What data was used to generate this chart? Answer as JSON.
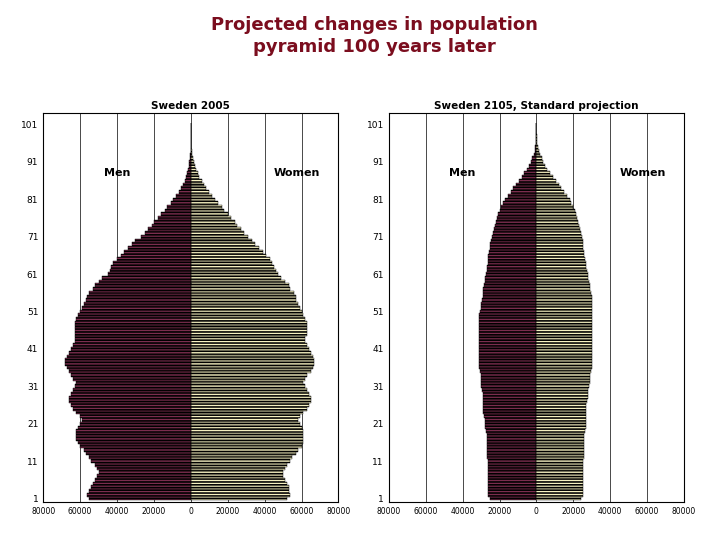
{
  "title": "Projected changes in population\npyramid 100 years later",
  "title_color": "#7B0D1E",
  "background_color": "#FFFFFF",
  "sidebar_color": "#8B1A1A",
  "footer_color": "#B8C4CC",
  "chart1_title": "Sweden 2005",
  "chart2_title": "Sweden 2105, Standard projection",
  "men_color": "#7B2D4E",
  "women_color": "#F5F0C0",
  "ages": [
    1,
    2,
    3,
    4,
    5,
    6,
    7,
    8,
    9,
    10,
    11,
    12,
    13,
    14,
    15,
    16,
    17,
    18,
    19,
    20,
    21,
    22,
    23,
    24,
    25,
    26,
    27,
    28,
    29,
    30,
    31,
    32,
    33,
    34,
    35,
    36,
    37,
    38,
    39,
    40,
    41,
    42,
    43,
    44,
    45,
    46,
    47,
    48,
    49,
    50,
    51,
    52,
    53,
    54,
    55,
    56,
    57,
    58,
    59,
    60,
    61,
    62,
    63,
    64,
    65,
    66,
    67,
    68,
    69,
    70,
    71,
    72,
    73,
    74,
    75,
    76,
    77,
    78,
    79,
    80,
    81,
    82,
    83,
    84,
    85,
    86,
    87,
    88,
    89,
    90,
    91,
    92,
    93,
    94,
    95,
    96,
    97,
    98,
    99,
    100,
    101
  ],
  "sweden2005_men": [
    55000,
    56000,
    55000,
    54000,
    53000,
    52000,
    51000,
    50000,
    51000,
    52000,
    54000,
    55000,
    57000,
    58000,
    60000,
    61000,
    62000,
    62000,
    62000,
    61000,
    60000,
    59000,
    60000,
    62000,
    64000,
    65000,
    66000,
    66000,
    65000,
    64000,
    63000,
    62000,
    64000,
    65000,
    66000,
    67000,
    68000,
    68000,
    67000,
    66000,
    65000,
    64000,
    63000,
    63000,
    63000,
    63000,
    63000,
    63000,
    62000,
    61000,
    60000,
    59000,
    58000,
    57000,
    56000,
    55000,
    53000,
    52000,
    50000,
    48000,
    45000,
    44000,
    43000,
    42000,
    40000,
    38000,
    36000,
    34000,
    32000,
    30000,
    27000,
    25000,
    23000,
    21000,
    20000,
    18000,
    16000,
    14000,
    13000,
    11000,
    9500,
    8000,
    6500,
    5200,
    4200,
    3300,
    2600,
    2000,
    1500,
    1100,
    800,
    500,
    300,
    150,
    80,
    40,
    20,
    8,
    4,
    2,
    1
  ],
  "sweden2005_women": [
    52000,
    54000,
    53000,
    53000,
    52000,
    51000,
    50000,
    50000,
    51000,
    52000,
    54000,
    55000,
    57000,
    58000,
    60000,
    61000,
    61000,
    61000,
    61000,
    60000,
    59000,
    58000,
    59000,
    61000,
    63000,
    64000,
    65000,
    65000,
    64000,
    63000,
    62000,
    61000,
    62000,
    63000,
    65000,
    66000,
    67000,
    67000,
    66000,
    65000,
    64000,
    63000,
    62000,
    62000,
    63000,
    63000,
    63000,
    63000,
    62000,
    61000,
    60000,
    59000,
    58000,
    57000,
    57000,
    56000,
    54000,
    53000,
    51000,
    49000,
    47000,
    46000,
    45000,
    44000,
    43000,
    41000,
    39000,
    37000,
    35000,
    33000,
    31000,
    29000,
    27000,
    25000,
    24000,
    22000,
    20000,
    18000,
    17000,
    15000,
    13000,
    11500,
    9800,
    8300,
    7000,
    5800,
    4700,
    3800,
    3000,
    2300,
    1700,
    1200,
    800,
    500,
    300,
    150,
    80,
    35,
    15,
    6,
    2
  ],
  "sweden2105_men": [
    25000,
    26000,
    26000,
    26000,
    26000,
    26000,
    26000,
    26000,
    26000,
    26000,
    26500,
    27000,
    27000,
    27000,
    27000,
    27000,
    27000,
    27000,
    27500,
    28000,
    28000,
    28000,
    28500,
    29000,
    29000,
    29000,
    29000,
    29000,
    29000,
    29500,
    30000,
    30000,
    30000,
    30000,
    30500,
    31000,
    31000,
    31000,
    31000,
    31000,
    31000,
    31000,
    31000,
    31000,
    31000,
    31000,
    31000,
    31000,
    31000,
    31000,
    30500,
    30000,
    30000,
    29500,
    29000,
    29000,
    29000,
    28500,
    28000,
    28000,
    27500,
    27000,
    27000,
    26500,
    26000,
    26000,
    25500,
    25000,
    25000,
    24500,
    24000,
    23500,
    23000,
    22500,
    22000,
    21500,
    21000,
    20000,
    19000,
    18000,
    17000,
    15500,
    14000,
    12500,
    11000,
    9500,
    8000,
    6500,
    5200,
    4000,
    3000,
    2200,
    1500,
    1000,
    600,
    300,
    150,
    60,
    20,
    7,
    2
  ],
  "sweden2105_women": [
    24000,
    25000,
    25000,
    25000,
    25000,
    25000,
    25000,
    25000,
    25000,
    25000,
    25500,
    26000,
    26000,
    26000,
    26000,
    26000,
    26000,
    26000,
    26500,
    27000,
    27000,
    27000,
    27000,
    27000,
    27000,
    27000,
    27500,
    28000,
    28000,
    28000,
    28500,
    29000,
    29000,
    29000,
    29500,
    30000,
    30000,
    30000,
    30000,
    30000,
    30000,
    30000,
    30000,
    30000,
    30000,
    30000,
    30000,
    30000,
    30000,
    30000,
    30000,
    30000,
    30000,
    30000,
    30000,
    29500,
    29000,
    29000,
    28500,
    28000,
    28000,
    27500,
    27000,
    27000,
    26500,
    26000,
    26000,
    25500,
    25000,
    25000,
    24500,
    24000,
    23500,
    23000,
    22500,
    22000,
    21500,
    21000,
    20000,
    19000,
    18000,
    16500,
    15000,
    13500,
    12000,
    10500,
    9000,
    7500,
    6000,
    4800,
    3700,
    2800,
    2000,
    1400,
    900,
    500,
    250,
    100,
    35,
    10,
    3
  ],
  "xlim": 80000,
  "ytick_positions": [
    1,
    11,
    21,
    31,
    41,
    51,
    61,
    71,
    81,
    91,
    101
  ],
  "xtick_labels": [
    "80000",
    "60000",
    "40000",
    "20000",
    "0",
    "20000",
    "40000",
    "60000",
    "80000"
  ],
  "xtick_vals": [
    -80000,
    -60000,
    -40000,
    -20000,
    0,
    20000,
    40000,
    60000,
    80000
  ]
}
